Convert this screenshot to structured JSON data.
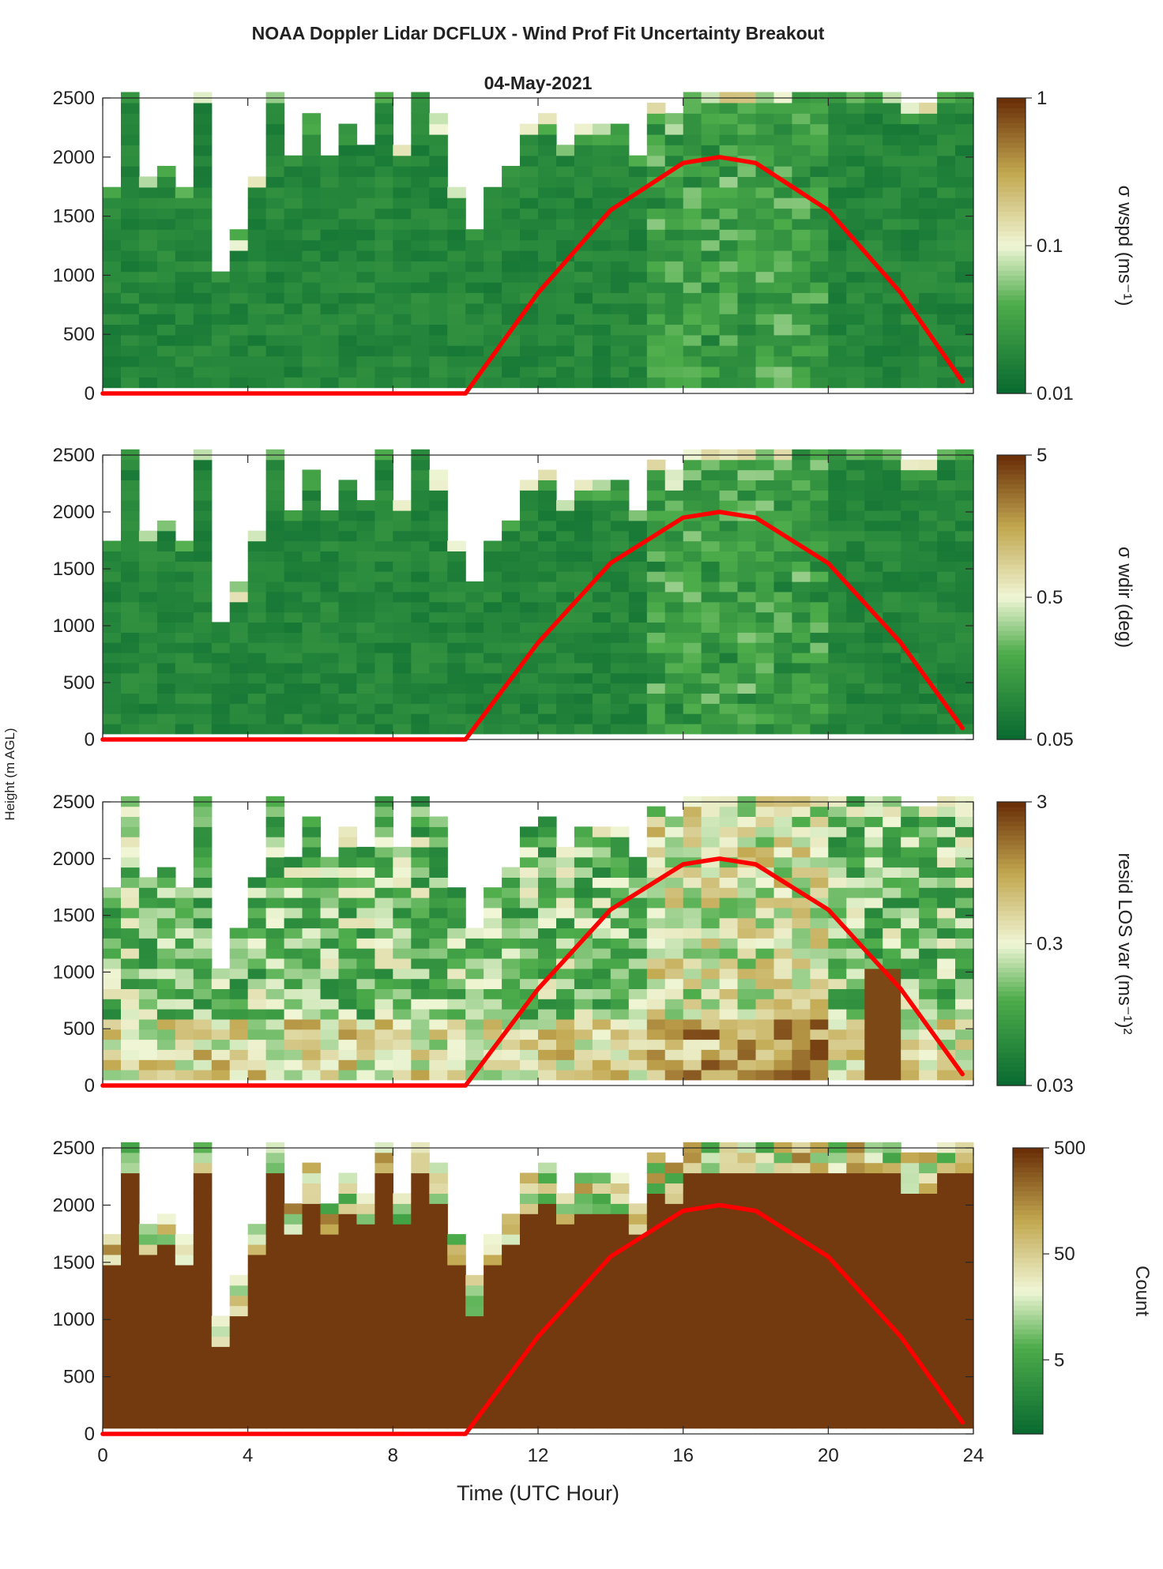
{
  "figure": {
    "title": "NOAA Doppler Lidar DCFLUX - Wind Prof Fit Uncertainty Breakout",
    "date": "04-May-2021",
    "xlabel": "Time (UTC Hour)",
    "ylabel": "Height (m AGL)"
  },
  "colors": {
    "low": "#0a6b31",
    "mid_green": "#4dac4a",
    "pale": "#f0f6d6",
    "tan": "#c2a850",
    "high": "#6b3008",
    "overlay_line": "#ff0000"
  },
  "chart_data": [
    {
      "type": "heatmap",
      "panel": "wspd",
      "quantity": "σ wspd",
      "colorbar_label": "σ wspd (ms⁻¹)",
      "colorbar_scale": "log",
      "colorbar_range": [
        0.01,
        1
      ],
      "colorbar_ticks": [
        "0.01",
        "0.1",
        "1"
      ],
      "xlim": [
        0,
        24
      ],
      "ylim": [
        0,
        2500
      ],
      "x_ticks": [
        "0",
        "4",
        "8",
        "12",
        "16",
        "20",
        "24"
      ],
      "y_ticks": [
        "0",
        "500",
        "1000",
        "1500",
        "2000",
        "2500"
      ],
      "overlay": {
        "type": "line",
        "color": "#ff0000",
        "x": [
          0,
          10,
          12,
          14,
          16,
          17,
          18,
          20,
          22,
          23.7
        ],
        "y": [
          0,
          0,
          850,
          1550,
          1950,
          2000,
          1950,
          1550,
          850,
          100
        ]
      }
    },
    {
      "type": "heatmap",
      "panel": "wdir",
      "quantity": "σ wdir",
      "colorbar_label": "σ wdir (deg)",
      "colorbar_scale": "log",
      "colorbar_range": [
        0.05,
        5
      ],
      "colorbar_ticks": [
        "0.05",
        "0.5",
        "5"
      ],
      "xlim": [
        0,
        24
      ],
      "ylim": [
        0,
        2500
      ],
      "x_ticks": [
        "0",
        "4",
        "8",
        "12",
        "16",
        "20",
        "24"
      ],
      "y_ticks": [
        "0",
        "500",
        "1000",
        "1500",
        "2000",
        "2500"
      ],
      "overlay": {
        "type": "line",
        "color": "#ff0000",
        "x": [
          0,
          10,
          12,
          14,
          16,
          17,
          18,
          20,
          22,
          23.7
        ],
        "y": [
          0,
          0,
          850,
          1550,
          1950,
          2000,
          1950,
          1550,
          850,
          100
        ]
      }
    },
    {
      "type": "heatmap",
      "panel": "resid",
      "quantity": "resid LOS var",
      "colorbar_label": "resid LOS var (ms⁻¹)²",
      "colorbar_scale": "log",
      "colorbar_range": [
        0.03,
        3
      ],
      "colorbar_ticks": [
        "0.03",
        "0.3",
        "3"
      ],
      "xlim": [
        0,
        24
      ],
      "ylim": [
        0,
        2500
      ],
      "x_ticks": [
        "0",
        "4",
        "8",
        "12",
        "16",
        "20",
        "24"
      ],
      "y_ticks": [
        "0",
        "500",
        "1000",
        "1500",
        "2000",
        "2500"
      ],
      "overlay": {
        "type": "line",
        "color": "#ff0000",
        "x": [
          0,
          10,
          12,
          14,
          16,
          17,
          18,
          20,
          22,
          23.7
        ],
        "y": [
          0,
          0,
          850,
          1550,
          1950,
          2000,
          1950,
          1550,
          850,
          100
        ]
      }
    },
    {
      "type": "heatmap",
      "panel": "count",
      "quantity": "Count",
      "colorbar_label": "Count",
      "colorbar_scale": "log",
      "colorbar_range": [
        1,
        500
      ],
      "colorbar_ticks": [
        "5",
        "50",
        "500"
      ],
      "xlim": [
        0,
        24
      ],
      "ylim": [
        0,
        2500
      ],
      "x_ticks": [
        "0",
        "4",
        "8",
        "12",
        "16",
        "20",
        "24"
      ],
      "y_ticks": [
        "0",
        "500",
        "1000",
        "1500",
        "2000",
        "2500"
      ],
      "overlay": {
        "type": "line",
        "color": "#ff0000",
        "x": [
          0,
          10,
          12,
          14,
          16,
          17,
          18,
          20,
          22,
          23.7
        ],
        "y": [
          0,
          0,
          850,
          1550,
          1950,
          2000,
          1950,
          1550,
          850,
          100
        ]
      }
    }
  ],
  "data_extent": {
    "note_hours": [
      0,
      0.5,
      1,
      1.5,
      2,
      2.5,
      3,
      3.5,
      4,
      4.5,
      5,
      5.5,
      6,
      6.5,
      7,
      7.5,
      8,
      8.5,
      9,
      9.5,
      10,
      10.5,
      11,
      11.5,
      12,
      12.5,
      13,
      13.5,
      14,
      14.5,
      15,
      15.5,
      16,
      16.5,
      17,
      17.5,
      18,
      18.5,
      19,
      19.5,
      20,
      20.5,
      21,
      21.5,
      22,
      22.5,
      23,
      23.5
    ],
    "top_height_m": [
      1700,
      2500,
      1800,
      1900,
      1700,
      2500,
      1000,
      1300,
      1800,
      2500,
      2000,
      2300,
      2000,
      2200,
      2100,
      2500,
      2100,
      2500,
      2300,
      1700,
      1300,
      1700,
      1900,
      2200,
      2300,
      2100,
      2200,
      2200,
      2200,
      2000,
      2400,
      2300,
      2500,
      2500,
      2500,
      2500,
      2500,
      2500,
      2500,
      2500,
      2500,
      2500,
      2500,
      2500,
      2400,
      2400,
      2500,
      2500
    ]
  }
}
